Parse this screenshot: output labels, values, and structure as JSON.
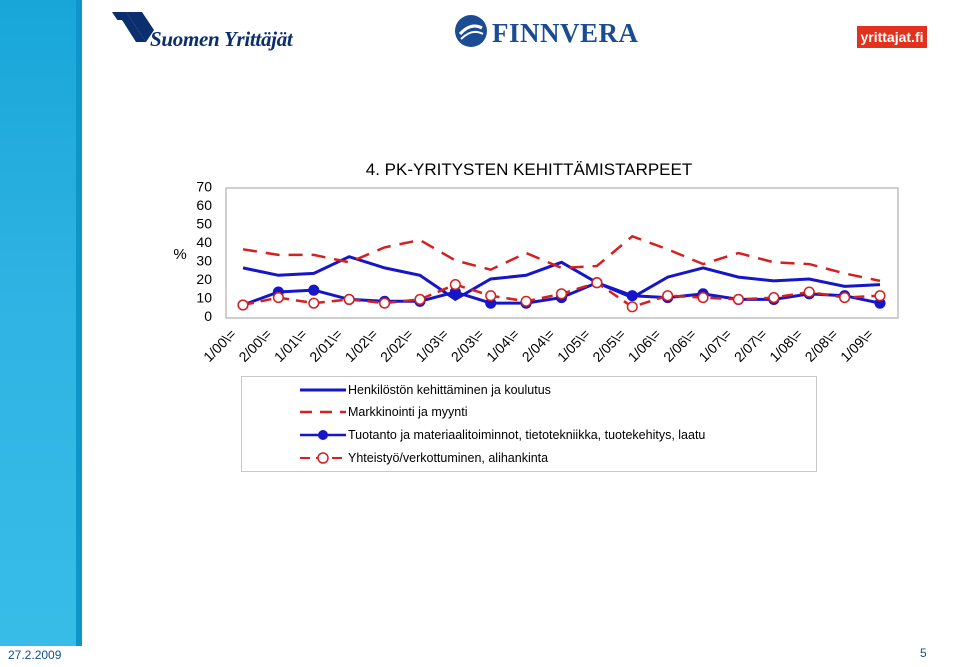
{
  "logos": {
    "suomen_yrittajat": "Suomen Yrittäjät",
    "finnvera": "FINNVERA",
    "yrittajat_fi": "yrittajat.fi"
  },
  "colors": {
    "series1": "#1616c8",
    "series2": "#d42020",
    "series3": "#1616c8",
    "series4": "#d42020",
    "plot_border": "#a0a0a0",
    "sidebar": "#2fb3e3"
  },
  "footer": {
    "date": "27.2.2009",
    "page": "5"
  },
  "chart_data": {
    "type": "line",
    "title": "4. PK-YRITYSTEN KEHITTÄMISTARPEET",
    "ylabel": "%",
    "xlabel": "",
    "ylim": [
      0,
      70
    ],
    "yticks": [
      0,
      10,
      20,
      30,
      40,
      50,
      60,
      70
    ],
    "grid": false,
    "legend_position": "bottom",
    "categories": [
      "1/00\\=",
      "2/00\\=",
      "1/01\\=",
      "2/01\\=",
      "1/02\\=",
      "2/02\\=",
      "1/03\\=",
      "2/03\\=",
      "1/04\\=",
      "2/04\\=",
      "1/05\\=",
      "2/05\\=",
      "1/06\\=",
      "2/06\\=",
      "1/07\\=",
      "2/07\\=",
      "1/08\\=",
      "2/08\\=",
      "1/09\\="
    ],
    "series": [
      {
        "name": "Henkilöstön kehittäminen ja koulutus",
        "style": "solid",
        "marker": "none",
        "values": [
          27,
          23,
          24,
          33,
          27,
          23,
          10,
          21,
          23,
          30,
          19,
          11,
          22,
          27,
          22,
          20,
          21,
          17,
          18
        ]
      },
      {
        "name": "Markkinointi ja myynti",
        "style": "dashed",
        "marker": "none",
        "values": [
          37,
          34,
          34,
          30,
          38,
          42,
          31,
          26,
          35,
          27,
          28,
          44,
          37,
          29,
          35,
          30,
          29,
          24,
          20
        ]
      },
      {
        "name": "Tuotanto ja materiaalitoiminnot, tietotekniikka, tuotekehitys, laatu",
        "style": "solid",
        "marker": "filled-circle",
        "values": [
          7,
          14,
          15,
          10,
          9,
          9,
          14,
          8,
          8,
          11,
          19,
          12,
          11,
          13,
          10,
          10,
          13,
          12,
          8
        ]
      },
      {
        "name": "Yhteistyö/verkottuminen, alihankinta",
        "style": "dashed",
        "marker": "open-circle",
        "values": [
          7,
          11,
          8,
          10,
          8,
          10,
          18,
          12,
          9,
          13,
          19,
          6,
          12,
          11,
          10,
          11,
          14,
          11,
          12
        ]
      }
    ]
  }
}
